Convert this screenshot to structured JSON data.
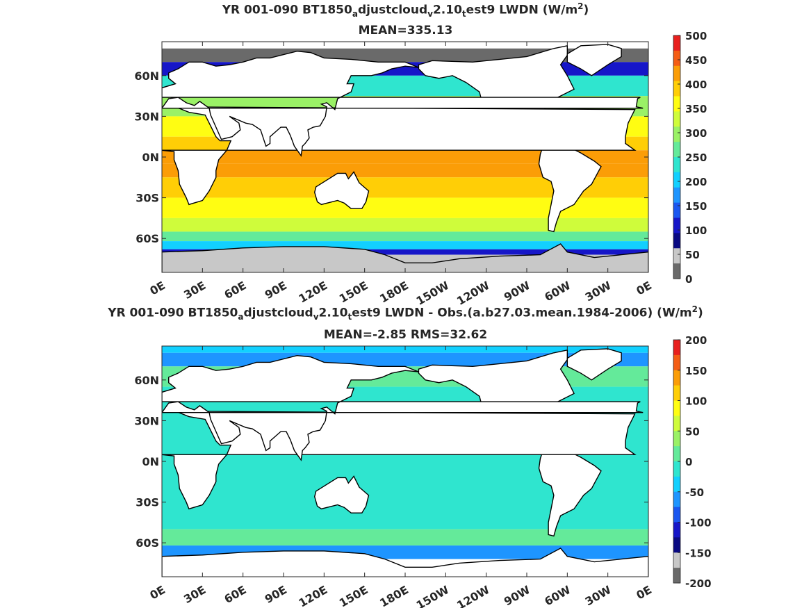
{
  "chart_data": [
    {
      "type": "heatmap",
      "title_prefix": "YR 001-090 BT1850",
      "title_sub1": "a",
      "title_mid1": "djustcloud",
      "title_sub2": "v",
      "title_mid2": "2.10",
      "title_sub3": "t",
      "title_mid3": "est9 LWDN (W/m",
      "title_sup": "2",
      "title_suffix": ")",
      "subtitle": "MEAN=335.13",
      "xticks": [
        "0E",
        "30E",
        "60E",
        "90E",
        "120E",
        "150E",
        "180E",
        "150W",
        "120W",
        "90W",
        "60W",
        "30W",
        "0E"
      ],
      "yticks": [
        "60N",
        "30N",
        "0N",
        "30S",
        "60S"
      ],
      "colorbar": {
        "ticks": [
          "500",
          "450",
          "400",
          "350",
          "300",
          "250",
          "200",
          "150",
          "100",
          "50",
          "0"
        ],
        "colors": [
          "#e8201e",
          "#f45d15",
          "#fb9d07",
          "#ffce06",
          "#fffd12",
          "#cffc3b",
          "#9af166",
          "#64ea9a",
          "#2fe5cf",
          "#12d0ff",
          "#1e95ff",
          "#1a57f0",
          "#1616c8",
          "#0a0a82",
          "#c8c8c8",
          "#6a6a6a"
        ]
      },
      "map": {
        "ocean_bands": [
          {
            "lat": 80,
            "color": "#6a6a6a"
          },
          {
            "lat": 70,
            "color": "#1616c8"
          },
          {
            "lat": 60,
            "color": "#2fe5cf"
          },
          {
            "lat": 45,
            "color": "#9af166"
          },
          {
            "lat": 30,
            "color": "#fffd12"
          },
          {
            "lat": 15,
            "color": "#ffce06"
          },
          {
            "lat": 5,
            "color": "#fb9d07"
          },
          {
            "lat": -5,
            "color": "#fb9d07"
          },
          {
            "lat": -15,
            "color": "#ffce06"
          },
          {
            "lat": -30,
            "color": "#fffd12"
          },
          {
            "lat": -45,
            "color": "#cffc3b"
          },
          {
            "lat": -55,
            "color": "#64ea9a"
          },
          {
            "lat": -62,
            "color": "#12d0ff"
          },
          {
            "lat": -68,
            "color": "#1616c8"
          },
          {
            "lat": -72,
            "color": "#c8c8c8"
          },
          {
            "lat": -90,
            "color": "#6a6a6a"
          }
        ]
      }
    },
    {
      "type": "heatmap",
      "title_prefix": "YR 001-090 BT1850",
      "title_sub1": "a",
      "title_mid1": "djustcloud",
      "title_sub2": "v",
      "title_mid2": "2.10",
      "title_sub3": "t",
      "title_mid3": "est9 LWDN - Obs.(a.b27.03.mean.1984-2006) (W/m",
      "title_sup": "2",
      "title_suffix": ")",
      "subtitle": "MEAN=-2.85 RMS=32.62",
      "xticks": [
        "0E",
        "30E",
        "60E",
        "90E",
        "120E",
        "150E",
        "180E",
        "150W",
        "120W",
        "90W",
        "60W",
        "30W",
        "0E"
      ],
      "yticks": [
        "60N",
        "30N",
        "0N",
        "30S",
        "60S"
      ],
      "colorbar": {
        "ticks": [
          "200",
          "150",
          "100",
          "50",
          "0",
          "-50",
          "-100",
          "-150",
          "-200"
        ],
        "colors": [
          "#e8201e",
          "#f45d15",
          "#fb9d07",
          "#ffce06",
          "#fffd12",
          "#cffc3b",
          "#9af166",
          "#64ea9a",
          "#2fe5cf",
          "#12d0ff",
          "#1e95ff",
          "#1a57f0",
          "#1616c8",
          "#0a0a82",
          "#c8c8c8",
          "#6a6a6a"
        ]
      },
      "map": {
        "ocean_bands": [
          {
            "lat": 90,
            "color": "#12d0ff"
          },
          {
            "lat": 80,
            "color": "#1e95ff"
          },
          {
            "lat": 70,
            "color": "#64ea9a"
          },
          {
            "lat": 55,
            "color": "#2fe5cf"
          },
          {
            "lat": -50,
            "color": "#64ea9a"
          },
          {
            "lat": -62,
            "color": "#1e95ff"
          },
          {
            "lat": -72,
            "color": "#ffffff"
          }
        ]
      }
    }
  ]
}
